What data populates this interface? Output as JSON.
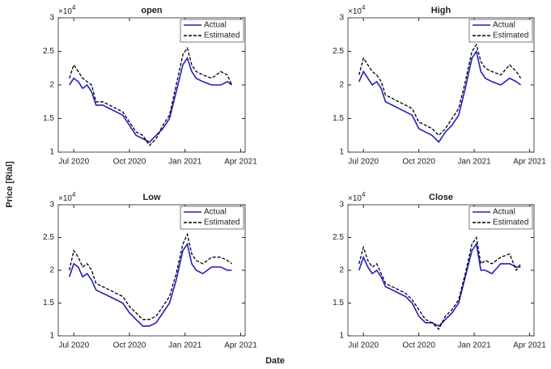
{
  "figure": {
    "ylabel": "Price [Rial]",
    "xlabel": "Date"
  },
  "chart_data": [
    {
      "type": "line",
      "title": "open",
      "ymultiplier": "×10",
      "ymultiplier_exp": "4",
      "x": [
        2020.48,
        2020.5,
        2020.52,
        2020.54,
        2020.56,
        2020.58,
        2020.6,
        2020.63,
        2020.66,
        2020.69,
        2020.72,
        2020.75,
        2020.78,
        2020.81,
        2020.84,
        2020.87,
        2020.9,
        2020.93,
        2020.96,
        2020.99,
        2021.01,
        2021.03,
        2021.05,
        2021.08,
        2021.12,
        2021.16,
        2021.19,
        2021.21
      ],
      "series": [
        {
          "name": "Actual",
          "color": "#1f1fbf",
          "style": "solid",
          "values": [
            2.0,
            2.1,
            2.05,
            1.95,
            2.0,
            1.9,
            1.7,
            1.7,
            1.65,
            1.6,
            1.55,
            1.4,
            1.25,
            1.2,
            1.15,
            1.25,
            1.35,
            1.5,
            1.9,
            2.3,
            2.4,
            2.2,
            2.1,
            2.05,
            2.0,
            2.0,
            2.05,
            2.0
          ]
        },
        {
          "name": "Estimated",
          "color": "#000000",
          "style": "dashed",
          "values": [
            2.1,
            2.3,
            2.2,
            2.1,
            2.05,
            2.0,
            1.75,
            1.75,
            1.7,
            1.65,
            1.6,
            1.45,
            1.3,
            1.25,
            1.1,
            1.2,
            1.4,
            1.55,
            2.0,
            2.45,
            2.55,
            2.3,
            2.2,
            2.15,
            2.1,
            2.2,
            2.15,
            2.0
          ]
        }
      ],
      "xlim": [
        2020.43,
        2021.27
      ],
      "ylim": [
        1,
        3
      ],
      "yticks": [
        1,
        1.5,
        2,
        2.5,
        3
      ],
      "xticks": [
        {
          "value": 2020.5,
          "label": "Jul 2020"
        },
        {
          "value": 2020.75,
          "label": "Oct 2020"
        },
        {
          "value": 2021.0,
          "label": "Jan 2021"
        },
        {
          "value": 2021.25,
          "label": "Apr 2021"
        }
      ],
      "legend": "top-right"
    },
    {
      "type": "line",
      "title": "High",
      "ymultiplier": "×10",
      "ymultiplier_exp": "4",
      "x": [
        2020.48,
        2020.5,
        2020.52,
        2020.54,
        2020.56,
        2020.58,
        2020.6,
        2020.63,
        2020.66,
        2020.69,
        2020.72,
        2020.75,
        2020.78,
        2020.81,
        2020.84,
        2020.87,
        2020.9,
        2020.93,
        2020.96,
        2020.99,
        2021.01,
        2021.03,
        2021.05,
        2021.08,
        2021.12,
        2021.16,
        2021.19,
        2021.21
      ],
      "series": [
        {
          "name": "Actual",
          "color": "#1f1fbf",
          "style": "solid",
          "values": [
            2.05,
            2.2,
            2.1,
            2.0,
            2.05,
            1.95,
            1.75,
            1.7,
            1.65,
            1.6,
            1.55,
            1.35,
            1.3,
            1.25,
            1.15,
            1.3,
            1.4,
            1.55,
            1.95,
            2.4,
            2.5,
            2.2,
            2.1,
            2.05,
            2.0,
            2.1,
            2.05,
            2.0
          ]
        },
        {
          "name": "Estimated",
          "color": "#000000",
          "style": "dashed",
          "values": [
            2.15,
            2.4,
            2.3,
            2.2,
            2.15,
            2.05,
            1.85,
            1.8,
            1.75,
            1.7,
            1.65,
            1.45,
            1.4,
            1.35,
            1.25,
            1.35,
            1.5,
            1.65,
            2.05,
            2.5,
            2.6,
            2.35,
            2.25,
            2.2,
            2.15,
            2.3,
            2.2,
            2.1
          ]
        }
      ],
      "xlim": [
        2020.43,
        2021.27
      ],
      "ylim": [
        1,
        3
      ],
      "yticks": [
        1,
        1.5,
        2,
        2.5,
        3
      ],
      "xticks": [
        {
          "value": 2020.5,
          "label": "Jul 2020"
        },
        {
          "value": 2020.75,
          "label": "Oct 2020"
        },
        {
          "value": 2021.0,
          "label": "Jan 2021"
        },
        {
          "value": 2021.25,
          "label": "Apr 2021"
        }
      ],
      "legend": "top-right"
    },
    {
      "type": "line",
      "title": "Low",
      "ymultiplier": "×10",
      "ymultiplier_exp": "4",
      "x": [
        2020.48,
        2020.5,
        2020.52,
        2020.54,
        2020.56,
        2020.58,
        2020.6,
        2020.63,
        2020.66,
        2020.69,
        2020.72,
        2020.75,
        2020.78,
        2020.81,
        2020.84,
        2020.87,
        2020.9,
        2020.93,
        2020.96,
        2020.99,
        2021.01,
        2021.03,
        2021.05,
        2021.08,
        2021.12,
        2021.16,
        2021.19,
        2021.21
      ],
      "series": [
        {
          "name": "Actual",
          "color": "#1f1fbf",
          "style": "solid",
          "values": [
            1.9,
            2.1,
            2.05,
            1.9,
            1.95,
            1.85,
            1.7,
            1.65,
            1.6,
            1.55,
            1.5,
            1.35,
            1.25,
            1.15,
            1.15,
            1.2,
            1.35,
            1.5,
            1.85,
            2.3,
            2.4,
            2.1,
            2.0,
            1.95,
            2.05,
            2.05,
            2.0,
            2.0
          ]
        },
        {
          "name": "Estimated",
          "color": "#000000",
          "style": "dashed",
          "values": [
            2.0,
            2.3,
            2.2,
            2.05,
            2.1,
            2.0,
            1.8,
            1.75,
            1.7,
            1.65,
            1.6,
            1.45,
            1.35,
            1.25,
            1.25,
            1.3,
            1.45,
            1.6,
            1.95,
            2.4,
            2.55,
            2.25,
            2.15,
            2.1,
            2.2,
            2.2,
            2.15,
            2.1
          ]
        }
      ],
      "xlim": [
        2020.43,
        2021.27
      ],
      "ylim": [
        1,
        3
      ],
      "yticks": [
        1,
        1.5,
        2,
        2.5,
        3
      ],
      "xticks": [
        {
          "value": 2020.5,
          "label": "Jul 2020"
        },
        {
          "value": 2020.75,
          "label": "Oct 2020"
        },
        {
          "value": 2021.0,
          "label": "Jan 2021"
        },
        {
          "value": 2021.25,
          "label": "Apr 2021"
        }
      ],
      "legend": "top-right"
    },
    {
      "type": "line",
      "title": "Close",
      "ymultiplier": "×10",
      "ymultiplier_exp": "4",
      "x": [
        2020.48,
        2020.5,
        2020.52,
        2020.54,
        2020.56,
        2020.58,
        2020.6,
        2020.63,
        2020.66,
        2020.69,
        2020.72,
        2020.75,
        2020.78,
        2020.81,
        2020.84,
        2020.87,
        2020.9,
        2020.93,
        2020.96,
        2020.99,
        2021.01,
        2021.03,
        2021.05,
        2021.08,
        2021.12,
        2021.16,
        2021.19,
        2021.21
      ],
      "series": [
        {
          "name": "Actual",
          "color": "#1f1fbf",
          "style": "solid",
          "values": [
            2.0,
            2.2,
            2.05,
            1.95,
            2.0,
            1.9,
            1.75,
            1.7,
            1.65,
            1.6,
            1.5,
            1.3,
            1.2,
            1.2,
            1.15,
            1.25,
            1.35,
            1.5,
            1.9,
            2.3,
            2.4,
            2.0,
            2.0,
            1.95,
            2.1,
            2.1,
            2.05,
            2.05
          ]
        },
        {
          "name": "Estimated",
          "color": "#000000",
          "style": "dashed",
          "values": [
            2.1,
            2.35,
            2.15,
            2.05,
            2.1,
            1.95,
            1.8,
            1.75,
            1.7,
            1.65,
            1.55,
            1.4,
            1.25,
            1.2,
            1.1,
            1.3,
            1.4,
            1.55,
            1.95,
            2.4,
            2.5,
            2.1,
            2.15,
            2.1,
            2.2,
            2.25,
            2.0,
            2.1
          ]
        }
      ],
      "xlim": [
        2020.43,
        2021.27
      ],
      "ylim": [
        1,
        3
      ],
      "yticks": [
        1,
        1.5,
        2,
        2.5,
        3
      ],
      "xticks": [
        {
          "value": 2020.5,
          "label": "Jul 2020"
        },
        {
          "value": 2020.75,
          "label": "Oct 2020"
        },
        {
          "value": 2021.0,
          "label": "Jan 2021"
        },
        {
          "value": 2021.25,
          "label": "Apr 2021"
        }
      ],
      "legend": "top-right"
    }
  ]
}
